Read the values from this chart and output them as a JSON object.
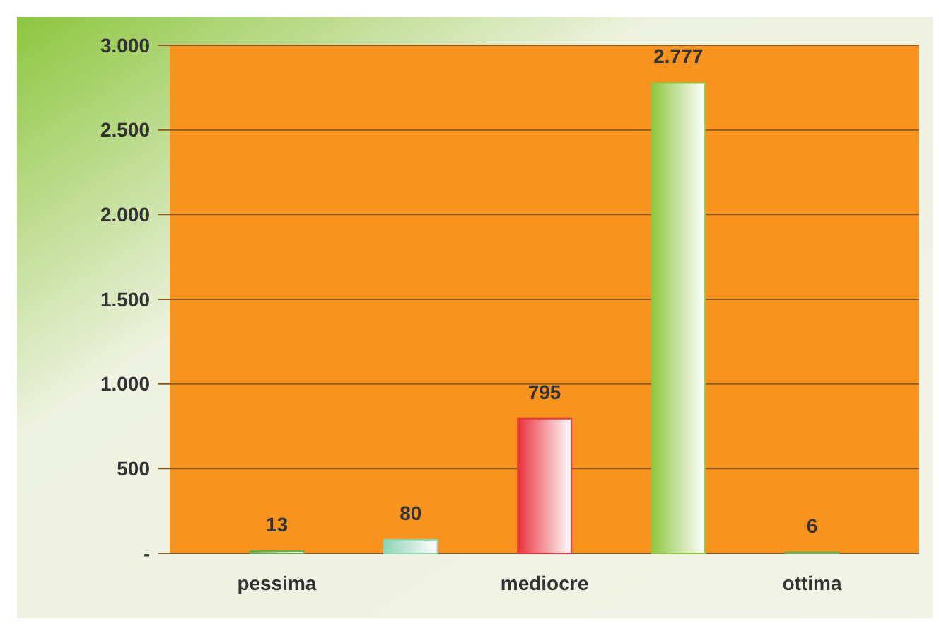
{
  "chart_data": {
    "type": "bar",
    "categories": [
      "pessima",
      null,
      "mediocre",
      null,
      "ottima"
    ],
    "values": [
      13,
      80,
      795,
      2777,
      6
    ],
    "colors": [
      "#6aa84f",
      "#8fd3b5",
      "#e8323c",
      "#8dc63f",
      "#6aa84f"
    ],
    "value_labels": [
      "13",
      "80",
      "795",
      "2.777",
      "6"
    ],
    "ylim": [
      0,
      3000
    ],
    "yticks": [
      {
        "value": 0,
        "label": "-"
      },
      {
        "value": 500,
        "label": "500"
      },
      {
        "value": 1000,
        "label": "1.000"
      },
      {
        "value": 1500,
        "label": "1.500"
      },
      {
        "value": 2000,
        "label": "2.000"
      },
      {
        "value": 2500,
        "label": "2.500"
      },
      {
        "value": 3000,
        "label": "3.000"
      }
    ],
    "grid": "y"
  }
}
